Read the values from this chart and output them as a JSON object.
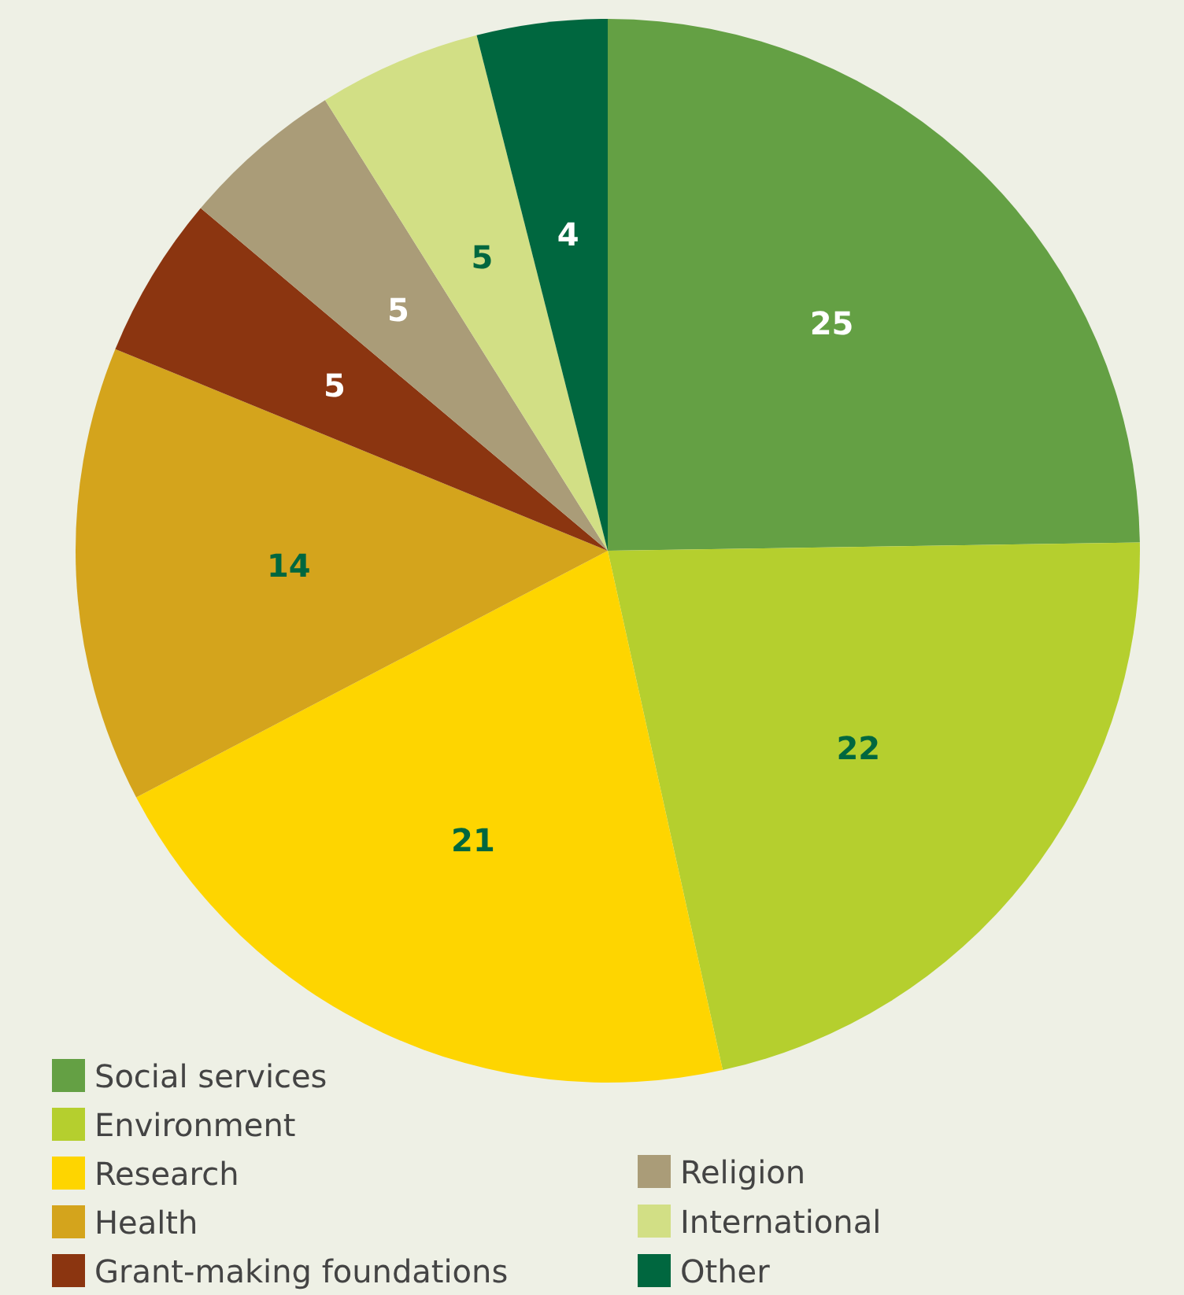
{
  "chart_data": {
    "type": "pie",
    "categories": [
      "Social services",
      "Environment",
      "Research",
      "Health",
      "Grant-making foundations",
      "Religion",
      "International",
      "Other"
    ],
    "values": [
      25,
      22,
      21,
      14,
      5,
      5,
      5,
      4
    ],
    "colors": [
      "#64a044",
      "#b5cf2e",
      "#fed500",
      "#d4a41c",
      "#8b3510",
      "#aa9c78",
      "#d2df85",
      "#00673f"
    ],
    "data_labels": true,
    "legend": "bottom left"
  }
}
